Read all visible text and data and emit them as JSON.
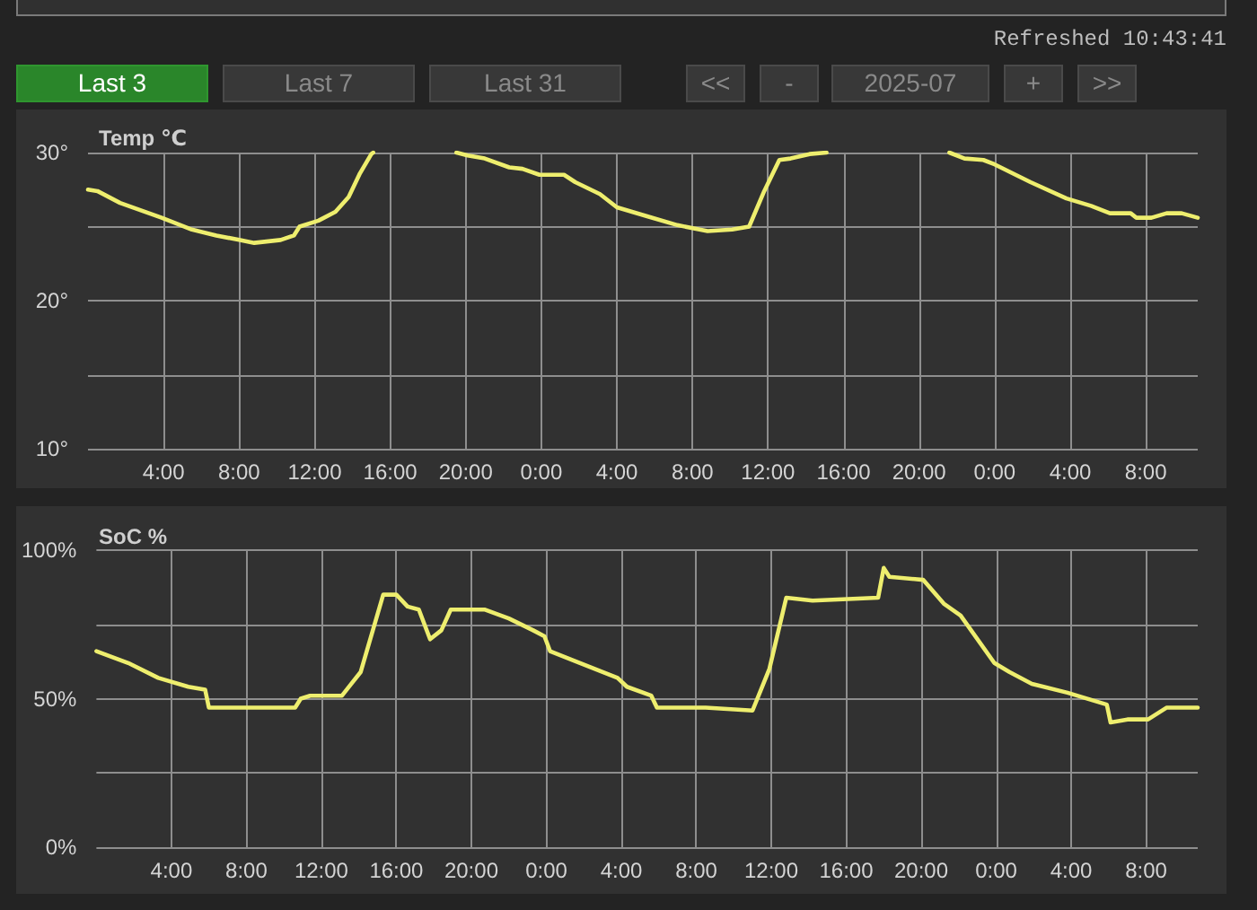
{
  "chart_data": [
    {
      "type": "other",
      "annotations": [
        "Refreshed 10:43:41",
        "Last 3",
        "Last 7",
        "Last 31",
        "<<",
        "-",
        "2025-07",
        "+",
        ">>"
      ]
    },
    {
      "type": "line",
      "title": "Temp ℃",
      "x": [
        "2025-07-01T00:00",
        "2025-07-01T00:30",
        "2025-07-01T01:42",
        "2025-07-01T03:54",
        "2025-07-01T05:30",
        "2025-07-01T06:48",
        "2025-07-01T08:00",
        "2025-07-01T08:48",
        "2025-07-01T10:12",
        "2025-07-01T10:54",
        "2025-07-01T11:12",
        "2025-07-01T12:12",
        "2025-07-01T13:06",
        "2025-07-01T13:48",
        "2025-07-01T14:24",
        "2025-07-01T15:00",
        "2025-07-01T15:06",
        "2025-07-01T17:00",
        "2025-07-01T19:30",
        "2025-07-01T20:06",
        "2025-07-01T21:00",
        "2025-07-01T22:18",
        "2025-07-01T23:00",
        "2025-07-01T23:54",
        "2025-07-02T01:12",
        "2025-07-02T01:48",
        "2025-07-02T03:06",
        "2025-07-02T04:00",
        "2025-07-02T05:36",
        "2025-07-02T07:12",
        "2025-07-02T08:48",
        "2025-07-02T10:06",
        "2025-07-02T11:00",
        "2025-07-02T11:48",
        "2025-07-02T12:36",
        "2025-07-02T13:12",
        "2025-07-02T14:12",
        "2025-07-02T15:06",
        "2025-07-02T18:00",
        "2025-07-02T21:36",
        "2025-07-02T22:24",
        "2025-07-02T23:24",
        "2025-07-03T00:00",
        "2025-07-03T01:54",
        "2025-07-03T03:48",
        "2025-07-03T05:06",
        "2025-07-03T06:06",
        "2025-07-03T07:12",
        "2025-07-03T07:30",
        "2025-07-03T08:18",
        "2025-07-03T09:06",
        "2025-07-03T09:54",
        "2025-07-03T10:45"
      ],
      "series": [
        {
          "color": "#eeee6e",
          "values": [
            27.5,
            27.4,
            26.6,
            25.6,
            24.8,
            24.4,
            24.1,
            23.9,
            24.1,
            24.4,
            25.0,
            25.4,
            26.0,
            27.0,
            28.6,
            29.9,
            30,
            null,
            30,
            29.8,
            29.6,
            29.0,
            28.9,
            28.5,
            28.5,
            28.0,
            27.2,
            26.3,
            25.7,
            25.1,
            24.7,
            24.8,
            25.0,
            27.4,
            29.5,
            29.6,
            29.9,
            30,
            null,
            30,
            29.6,
            29.5,
            29.2,
            28.0,
            26.9,
            26.4,
            25.9,
            25.9,
            25.6,
            25.6,
            25.9,
            25.9,
            25.6
          ]
        }
      ],
      "xlim": [
        "2025-07-01T00:00",
        "2025-07-03T10:45"
      ],
      "xticks": [
        {
          "value": "2025-07-01T04:00",
          "label": "4:00"
        },
        {
          "value": "2025-07-01T08:00",
          "label": "8:00"
        },
        {
          "value": "2025-07-01T12:00",
          "label": "12:00"
        },
        {
          "value": "2025-07-01T16:00",
          "label": "16:00"
        },
        {
          "value": "2025-07-01T20:00",
          "label": "20:00"
        },
        {
          "value": "2025-07-02T00:00",
          "label": "0:00"
        },
        {
          "value": "2025-07-02T04:00",
          "label": "4:00"
        },
        {
          "value": "2025-07-02T08:00",
          "label": "8:00"
        },
        {
          "value": "2025-07-02T12:00",
          "label": "12:00"
        },
        {
          "value": "2025-07-02T16:00",
          "label": "16:00"
        },
        {
          "value": "2025-07-02T20:00",
          "label": "20:00"
        },
        {
          "value": "2025-07-03T00:00",
          "label": "0:00"
        },
        {
          "value": "2025-07-03T04:00",
          "label": "4:00"
        },
        {
          "value": "2025-07-03T08:00",
          "label": "8:00"
        }
      ],
      "ylim": [
        10,
        30
      ],
      "yticks": [
        {
          "value": 10,
          "label": "10°"
        },
        {
          "value": 15,
          "label": null
        },
        {
          "value": 20,
          "label": "20°"
        },
        {
          "value": 25,
          "label": null
        },
        {
          "value": 30,
          "label": "30°"
        }
      ],
      "grid": true,
      "marker": "none"
    },
    {
      "type": "line",
      "title": "SoC %",
      "x": [
        "2025-07-01T00:00",
        "2025-07-01T01:42",
        "2025-07-01T03:18",
        "2025-07-01T04:54",
        "2025-07-01T05:48",
        "2025-07-01T06:00",
        "2025-07-01T10:36",
        "2025-07-01T10:54",
        "2025-07-01T11:24",
        "2025-07-01T13:06",
        "2025-07-01T13:36",
        "2025-07-01T14:06",
        "2025-07-01T15:18",
        "2025-07-01T16:00",
        "2025-07-01T16:36",
        "2025-07-01T17:12",
        "2025-07-01T17:48",
        "2025-07-01T18:24",
        "2025-07-01T18:54",
        "2025-07-01T19:30",
        "2025-07-01T20:42",
        "2025-07-01T22:00",
        "2025-07-01T23:18",
        "2025-07-01T23:54",
        "2025-07-02T00:12",
        "2025-07-02T01:48",
        "2025-07-02T03:48",
        "2025-07-02T04:18",
        "2025-07-02T05:36",
        "2025-07-02T05:54",
        "2025-07-02T08:30",
        "2025-07-02T11:00",
        "2025-07-02T11:54",
        "2025-07-02T12:48",
        "2025-07-02T14:12",
        "2025-07-02T17:42",
        "2025-07-02T18:00",
        "2025-07-02T18:18",
        "2025-07-02T20:06",
        "2025-07-02T21:12",
        "2025-07-02T22:06",
        "2025-07-02T23:54",
        "2025-07-03T00:42",
        "2025-07-03T01:54",
        "2025-07-03T03:48",
        "2025-07-03T05:54",
        "2025-07-03T06:06",
        "2025-07-03T07:00",
        "2025-07-03T08:06",
        "2025-07-03T09:06",
        "2025-07-03T10:45"
      ],
      "series": [
        {
          "color": "#eeee6e",
          "values": [
            66,
            62,
            57,
            54,
            53,
            47,
            47,
            50,
            51,
            51,
            55,
            59,
            85,
            85,
            81,
            80,
            70,
            73,
            80,
            80,
            80,
            77,
            73,
            71,
            66,
            62,
            57,
            54,
            51,
            47,
            47,
            46,
            60,
            84,
            83,
            84,
            94,
            91,
            90,
            82,
            78,
            62,
            59,
            55,
            52,
            48,
            42,
            43,
            43,
            47,
            47
          ]
        }
      ],
      "xlim": [
        "2025-07-01T00:00",
        "2025-07-03T10:45"
      ],
      "xticks": [
        {
          "value": "2025-07-01T04:00",
          "label": "4:00"
        },
        {
          "value": "2025-07-01T08:00",
          "label": "8:00"
        },
        {
          "value": "2025-07-01T12:00",
          "label": "12:00"
        },
        {
          "value": "2025-07-01T16:00",
          "label": "16:00"
        },
        {
          "value": "2025-07-01T20:00",
          "label": "20:00"
        },
        {
          "value": "2025-07-02T00:00",
          "label": "0:00"
        },
        {
          "value": "2025-07-02T04:00",
          "label": "4:00"
        },
        {
          "value": "2025-07-02T08:00",
          "label": "8:00"
        },
        {
          "value": "2025-07-02T12:00",
          "label": "12:00"
        },
        {
          "value": "2025-07-02T16:00",
          "label": "16:00"
        },
        {
          "value": "2025-07-02T20:00",
          "label": "20:00"
        },
        {
          "value": "2025-07-03T00:00",
          "label": "0:00"
        },
        {
          "value": "2025-07-03T04:00",
          "label": "4:00"
        },
        {
          "value": "2025-07-03T08:00",
          "label": "8:00"
        }
      ],
      "ylim": [
        0,
        100
      ],
      "yticks": [
        {
          "value": 0,
          "label": "0%"
        },
        {
          "value": 25,
          "label": null
        },
        {
          "value": 50,
          "label": "50%"
        },
        {
          "value": 75,
          "label": null
        },
        {
          "value": 100,
          "label": "100%"
        }
      ],
      "grid": true,
      "marker": "none"
    }
  ]
}
